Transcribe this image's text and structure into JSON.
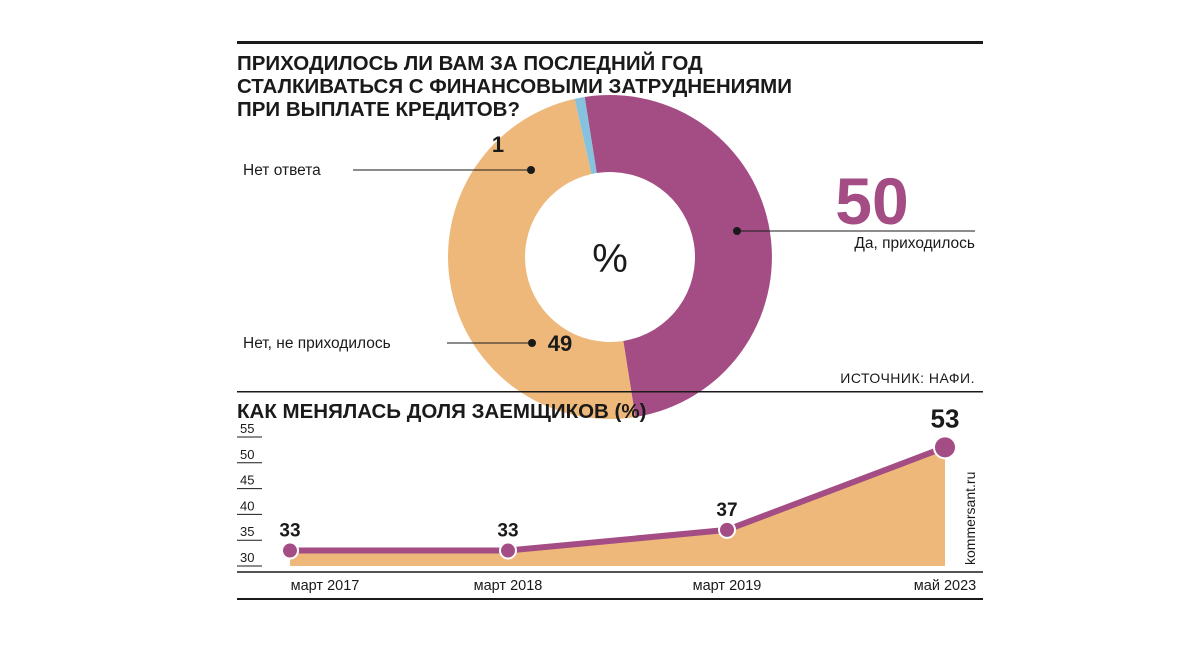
{
  "chart_data": [
    {
      "type": "pie",
      "title": "ПРИХОДИЛОСЬ ЛИ ВАМ ЗА ПОСЛЕДНИЙ ГОД СТАЛКИВАТЬСЯ С ФИНАНСОВЫМИ ЗАТРУДНЕНИЯМИ ПРИ ВЫПЛАТЕ КРЕДИТОВ?",
      "title_lines": [
        "ПРИХОДИЛОСЬ ЛИ ВАМ ЗА ПОСЛЕДНИЙ ГОД",
        "СТАЛКИВАТЬСЯ С ФИНАНСОВЫМИ ЗАТРУДНЕНИЯМИ",
        "ПРИ ВЫПЛАТЕ КРЕДИТОВ?"
      ],
      "center_label": "%",
      "slices": [
        {
          "label": "Да, приходилось",
          "value": 50,
          "color": "#a34d84"
        },
        {
          "label": "Нет, не приходилось",
          "value": 49,
          "color": "#eeb87b"
        },
        {
          "label": "Нет ответа",
          "value": 1,
          "color": "#86c2dd"
        }
      ],
      "source": "ИСТОЧНИК: НАФИ."
    },
    {
      "type": "area",
      "title": "КАК МЕНЯЛАСЬ ДОЛЯ ЗАЕМЩИКОВ (%)",
      "categories": [
        "март 2017",
        "март 2018",
        "март 2019",
        "май 2023"
      ],
      "values": [
        33,
        33,
        37,
        53
      ],
      "yticks": [
        30,
        35,
        40,
        45,
        50,
        55
      ],
      "ylim": [
        30,
        55
      ],
      "line_color": "#a34d84",
      "fill_color": "#eeb87b",
      "credit": "kommersant.ru"
    }
  ]
}
